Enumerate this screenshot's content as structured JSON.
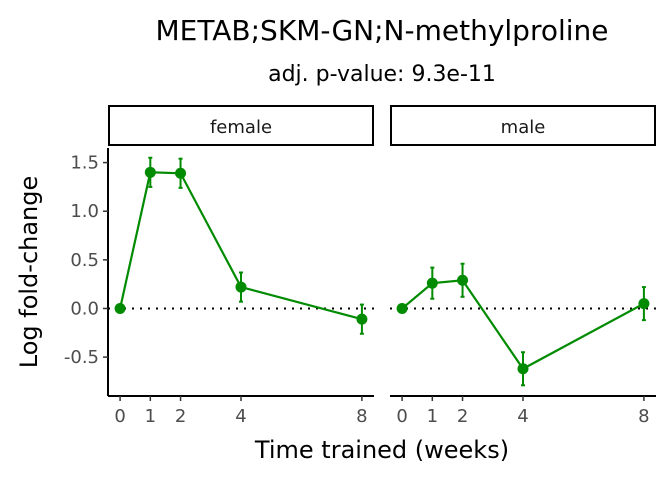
{
  "chart_data": {
    "type": "line",
    "title": "METAB;SKM-GN;N-methylproline",
    "subtitle": "adj. p-value: 9.3e-11",
    "xlabel": "Time trained (weeks)",
    "ylabel": "Log fold-change",
    "x": [
      0,
      1,
      2,
      4,
      8
    ],
    "x_ticks": [
      "0",
      "1",
      "2",
      "4",
      "8"
    ],
    "xlim": [
      -0.4,
      8.4
    ],
    "y_ticks": [
      "-0.5",
      "0.0",
      "0.5",
      "1.0",
      "1.5"
    ],
    "ylim": [
      -0.9,
      1.65
    ],
    "reference_line": {
      "y": 0,
      "style": "dotted",
      "color": "#000000"
    },
    "grid": false,
    "line_color": "#008b00",
    "panels": [
      {
        "label": "female",
        "values": [
          0.0,
          1.4,
          1.39,
          0.22,
          -0.11
        ],
        "error_low": [
          0.0,
          1.25,
          1.24,
          0.07,
          -0.26
        ],
        "error_high": [
          0.0,
          1.55,
          1.54,
          0.37,
          0.04
        ]
      },
      {
        "label": "male",
        "values": [
          0.0,
          0.26,
          0.29,
          -0.62,
          0.05
        ],
        "error_low": [
          0.0,
          0.1,
          0.12,
          -0.79,
          -0.12
        ],
        "error_high": [
          0.0,
          0.42,
          0.46,
          -0.45,
          0.22
        ]
      }
    ]
  }
}
